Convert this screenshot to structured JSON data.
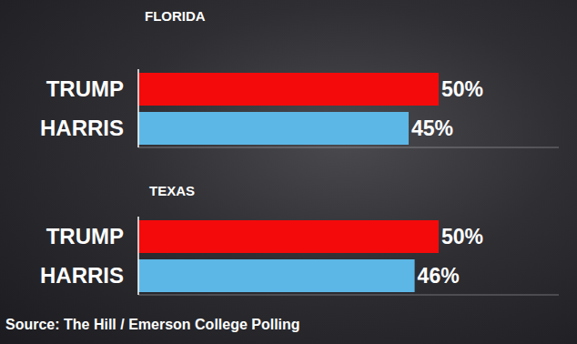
{
  "chart_data": [
    {
      "type": "bar",
      "title": "FLORIDA",
      "orientation": "horizontal",
      "categories": [
        "TRUMP",
        "HARRIS"
      ],
      "values": [
        50,
        45
      ],
      "value_labels": [
        "50%",
        "45%"
      ],
      "colors": [
        "#f40a0a",
        "#5db7e6"
      ],
      "xlim": [
        0,
        70
      ],
      "data_labels": true,
      "tick_labels": "y"
    },
    {
      "type": "bar",
      "title": "TEXAS",
      "orientation": "horizontal",
      "categories": [
        "TRUMP",
        "HARRIS"
      ],
      "values": [
        50,
        46
      ],
      "value_labels": [
        "50%",
        "46%"
      ],
      "colors": [
        "#f40a0a",
        "#5db7e6"
      ],
      "xlim": [
        0,
        70
      ],
      "data_labels": true,
      "tick_labels": "y"
    }
  ],
  "source": "Source: The Hill / Emerson College Polling"
}
